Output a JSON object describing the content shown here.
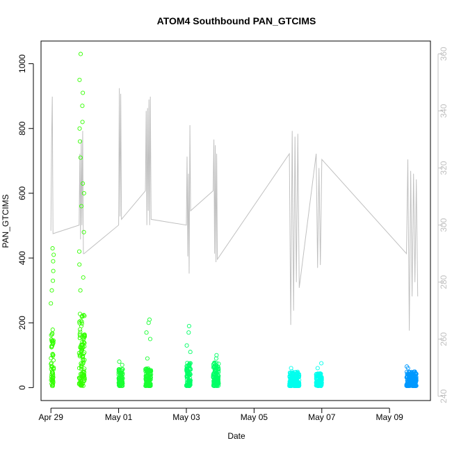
{
  "chart_data": {
    "type": "scatter",
    "title": "ATOM4 Southbound PAN_GTCIMS",
    "xlabel": "Date",
    "ylabel": "PAN_GTCIMS",
    "x_ticks": [
      "Apr 29",
      "May 01",
      "May 03",
      "May 05",
      "May 07",
      "May 09"
    ],
    "y_ticks": [
      "0",
      "200",
      "400",
      "600",
      "800",
      "1000"
    ],
    "y2_ticks": [
      "240",
      "260",
      "280",
      "300",
      "320",
      "340",
      "360"
    ],
    "xlim": [
      "2018-04-28T17:00",
      "2018-05-10T05:00"
    ],
    "ylim": [
      -40,
      1070
    ],
    "y2lim": [
      238.5,
      364.5
    ],
    "grid": false,
    "colors": {
      "scatter_palette": [
        "#33ff00",
        "#00ff66",
        "#00ffff",
        "#0099ff"
      ],
      "secondary_line": "#c0c0c0",
      "axes": "#000000",
      "right_axis": "#c0c0c0"
    },
    "series": [
      {
        "kind": "scatter",
        "y_axis": "left",
        "segments": [
          {
            "start": "2018-04-29T00:00",
            "end": "2018-04-29T02:00",
            "color": "#33ff00",
            "base": 5,
            "typical": 180,
            "spikes": [
              260,
              300,
              330,
              360,
              390,
              410,
              430
            ]
          },
          {
            "start": "2018-04-29T20:00",
            "end": "2018-04-30T00:00",
            "color": "#33ff00",
            "base": 5,
            "typical": 230,
            "spikes": [
              300,
              340,
              380,
              420,
              480,
              560,
              600,
              630,
              710,
              760,
              800,
              820,
              870,
              910,
              950,
              1030
            ]
          },
          {
            "start": "2018-05-01T00:00",
            "end": "2018-05-01T03:00",
            "color": "#1aff33",
            "base": 5,
            "typical": 60,
            "spikes": [
              70,
              80
            ]
          },
          {
            "start": "2018-05-01T19:00",
            "end": "2018-05-01T23:00",
            "color": "#1aff33",
            "base": 5,
            "typical": 60,
            "spikes": [
              90,
              150,
              170,
              200,
              210
            ]
          },
          {
            "start": "2018-05-03T00:00",
            "end": "2018-05-03T03:00",
            "color": "#00ff66",
            "base": 5,
            "typical": 80,
            "spikes": [
              110,
              130,
              170,
              190
            ]
          },
          {
            "start": "2018-05-03T19:00",
            "end": "2018-05-03T23:00",
            "color": "#00ff66",
            "base": 5,
            "typical": 80,
            "spikes": [
              90,
              100
            ]
          },
          {
            "start": "2018-05-06T01:00",
            "end": "2018-05-06T08:00",
            "color": "#00ffee",
            "base": 5,
            "typical": 50,
            "spikes": [
              60
            ]
          },
          {
            "start": "2018-05-06T20:00",
            "end": "2018-05-07T00:00",
            "color": "#00ffee",
            "base": 5,
            "typical": 45,
            "spikes": [
              60,
              75
            ]
          },
          {
            "start": "2018-05-09T12:00",
            "end": "2018-05-09T19:00",
            "color": "#0099ff",
            "base": 5,
            "typical": 50,
            "spikes": [
              60,
              65
            ]
          }
        ]
      },
      {
        "kind": "line",
        "y_axis": "right",
        "points": [
          [
            "2018-04-29T00:00",
            298
          ],
          [
            "2018-04-29T00:30",
            330
          ],
          [
            "2018-04-29T01:00",
            345
          ],
          [
            "2018-04-29T01:30",
            297
          ],
          [
            "2018-04-29T20:00",
            300
          ],
          [
            "2018-04-29T20:30",
            325
          ],
          [
            "2018-04-29T21:00",
            295
          ],
          [
            "2018-04-29T21:30",
            330
          ],
          [
            "2018-04-29T22:00",
            300
          ],
          [
            "2018-04-29T22:30",
            333
          ],
          [
            "2018-04-29T23:00",
            290
          ],
          [
            "2018-04-29T23:30",
            290
          ],
          [
            "2018-05-01T00:00",
            300
          ],
          [
            "2018-05-01T00:30",
            348
          ],
          [
            "2018-05-01T01:00",
            303
          ],
          [
            "2018-05-01T01:30",
            346
          ],
          [
            "2018-05-01T02:00",
            302
          ],
          [
            "2018-05-01T19:00",
            312
          ],
          [
            "2018-05-01T19:30",
            340
          ],
          [
            "2018-05-01T20:00",
            300
          ],
          [
            "2018-05-01T20:30",
            341
          ],
          [
            "2018-05-01T21:00",
            305
          ],
          [
            "2018-05-01T21:30",
            344
          ],
          [
            "2018-05-01T22:00",
            300
          ],
          [
            "2018-05-01T22:30",
            345
          ],
          [
            "2018-05-01T23:00",
            302
          ],
          [
            "2018-05-03T00:00",
            300
          ],
          [
            "2018-05-03T00:30",
            324
          ],
          [
            "2018-05-03T01:00",
            289
          ],
          [
            "2018-05-03T01:30",
            318
          ],
          [
            "2018-05-03T02:00",
            283
          ],
          [
            "2018-05-03T02:30",
            335
          ],
          [
            "2018-05-03T03:00",
            305
          ],
          [
            "2018-05-03T19:00",
            312
          ],
          [
            "2018-05-03T19:30",
            330
          ],
          [
            "2018-05-03T20:00",
            290
          ],
          [
            "2018-05-03T20:30",
            328
          ],
          [
            "2018-05-03T21:00",
            287
          ],
          [
            "2018-05-03T21:30",
            325
          ],
          [
            "2018-05-03T22:00",
            288
          ],
          [
            "2018-05-06T01:00",
            325
          ],
          [
            "2018-05-06T02:00",
            265
          ],
          [
            "2018-05-06T03:00",
            333
          ],
          [
            "2018-05-06T04:00",
            270
          ],
          [
            "2018-05-06T05:00",
            331
          ],
          [
            "2018-05-06T06:00",
            280
          ],
          [
            "2018-05-06T07:00",
            332
          ],
          [
            "2018-05-06T08:00",
            278
          ],
          [
            "2018-05-06T20:00",
            325
          ],
          [
            "2018-05-06T21:00",
            285
          ],
          [
            "2018-05-06T22:00",
            320
          ],
          [
            "2018-05-06T23:00",
            286
          ],
          [
            "2018-05-07T00:00",
            323
          ],
          [
            "2018-05-09T12:00",
            290
          ],
          [
            "2018-05-09T13:00",
            323
          ],
          [
            "2018-05-09T14:00",
            263
          ],
          [
            "2018-05-09T15:00",
            319
          ],
          [
            "2018-05-09T16:00",
            275
          ],
          [
            "2018-05-09T17:00",
            318
          ],
          [
            "2018-05-09T18:00",
            280
          ],
          [
            "2018-05-09T19:00",
            316
          ],
          [
            "2018-05-09T20:00",
            275
          ]
        ]
      }
    ]
  }
}
